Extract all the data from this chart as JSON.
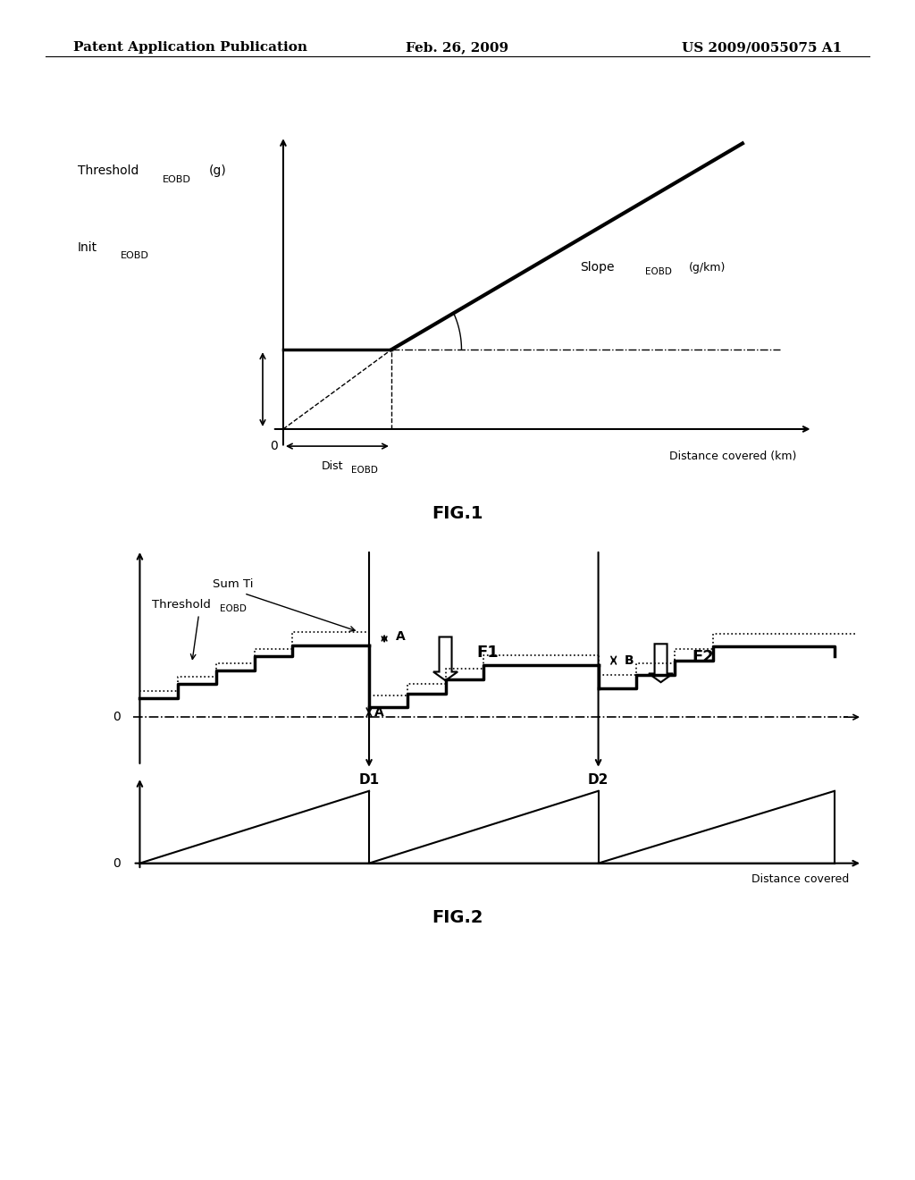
{
  "header_left": "Patent Application Publication",
  "header_center": "Feb. 26, 2009",
  "header_right": "US 2009/0055075 A1",
  "fig1_label": "FIG.1",
  "fig2_label": "FIG.2",
  "background_color": "#ffffff",
  "text_color": "#000000"
}
